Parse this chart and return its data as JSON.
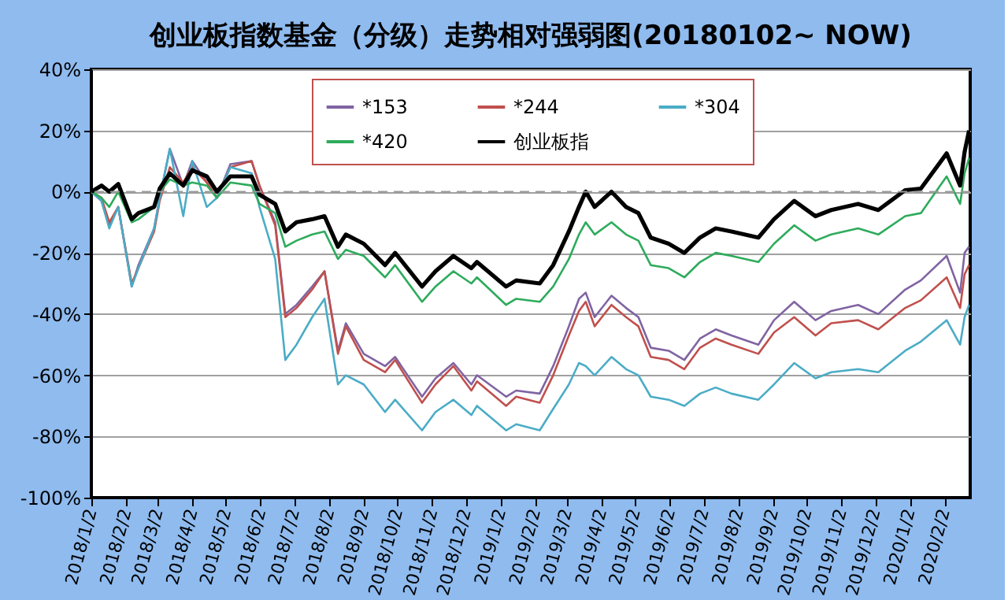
{
  "chart_data": {
    "type": "line",
    "title": "创业板指数基金（分级）走势相对强弱图(20180102~ NOW)",
    "x": [
      "2018-01-02",
      "2018-01-11",
      "2018-01-18",
      "2018-01-26",
      "2018-02-07",
      "2018-02-13",
      "2018-02-27",
      "2018-03-04",
      "2018-03-13",
      "2018-03-25",
      "2018-04-02",
      "2018-04-15",
      "2018-04-24",
      "2018-05-06",
      "2018-05-25",
      "2018-06-01",
      "2018-06-15",
      "2018-06-24",
      "2018-07-04",
      "2018-07-18",
      "2018-07-29",
      "2018-08-10",
      "2018-08-17",
      "2018-09-02",
      "2018-09-21",
      "2018-09-30",
      "2018-10-24",
      "2018-11-05",
      "2018-11-21",
      "2018-12-07",
      "2018-12-12",
      "2019-01-07",
      "2019-01-16",
      "2019-02-06",
      "2019-02-18",
      "2019-03-04",
      "2019-03-13",
      "2019-03-19",
      "2019-03-27",
      "2019-04-11",
      "2019-04-24",
      "2019-05-05",
      "2019-05-16",
      "2019-06-01",
      "2019-06-15",
      "2019-06-29",
      "2019-07-13",
      "2019-07-27",
      "2019-08-20",
      "2019-09-03",
      "2019-09-21",
      "2019-10-10",
      "2019-10-24",
      "2019-11-17",
      "2019-12-05",
      "2019-12-29",
      "2020-01-12",
      "2020-02-04",
      "2020-02-16",
      "2020-02-20",
      "2020-02-24"
    ],
    "series": [
      {
        "name": "*153",
        "color": "#8064a2",
        "values": [
          0,
          -3,
          -11,
          -5,
          -31,
          -24,
          -12,
          -2,
          14,
          2,
          10,
          3,
          -2,
          9,
          10,
          2,
          -10,
          -40,
          -37,
          -31,
          -26,
          -52,
          -43,
          -53,
          -57,
          -54,
          -67,
          -61,
          -56,
          -63,
          -60,
          -67,
          -65,
          -66,
          -57,
          -44,
          -35,
          -33,
          -41,
          -34,
          -38,
          -41,
          -51,
          -52,
          -55,
          -48,
          -45,
          -47,
          -50,
          -42,
          -36,
          -42,
          -39,
          -37,
          -40,
          -32,
          -29,
          -21,
          -33,
          -20,
          -18
        ]
      },
      {
        "name": "*244",
        "color": "#c0504d",
        "values": [
          0,
          -2,
          -10,
          -5,
          -30,
          -25,
          -13,
          -3,
          8,
          3,
          8,
          3,
          -2,
          8,
          10,
          2,
          -11,
          -41,
          -38,
          -32,
          -26,
          -53,
          -44,
          -55,
          -59,
          -55,
          -69,
          -63,
          -57,
          -65,
          -62,
          -70,
          -67,
          -69,
          -60,
          -47,
          -39,
          -36,
          -44,
          -37,
          -41,
          -44,
          -54,
          -55,
          -58,
          -51,
          -48,
          -50,
          -53,
          -46,
          -41,
          -47,
          -43,
          -42,
          -45,
          -38,
          -35.5,
          -28,
          -38,
          -27,
          -24
        ]
      },
      {
        "name": "*304",
        "color": "#4bacc6",
        "values": [
          0,
          -3,
          -12,
          -5,
          -31,
          -25,
          -12,
          -2,
          14,
          -8,
          10,
          -5,
          -2,
          8,
          6,
          -5,
          -22,
          -55,
          -50,
          -41,
          -35,
          -63,
          -60,
          -63,
          -72,
          -68,
          -78,
          -72,
          -68,
          -73,
          -70,
          -78,
          -76,
          -78,
          -71,
          -63,
          -56,
          -57,
          -60,
          -54,
          -58,
          -60,
          -67,
          -68,
          -70,
          -66,
          -64,
          -66,
          -68,
          -63,
          -56,
          -61,
          -59,
          -58,
          -59,
          -52,
          -49,
          -42,
          -50,
          -41,
          -37
        ]
      },
      {
        "name": "*420",
        "color": "#2eab5c",
        "values": [
          0,
          -2,
          -5,
          0,
          -10,
          -9,
          -5,
          0,
          4,
          2,
          3,
          2,
          -2,
          3,
          2,
          -4,
          -7,
          -18,
          -16,
          -14,
          -13,
          -22,
          -19,
          -21,
          -28,
          -24,
          -36,
          -31,
          -26,
          -30,
          -28,
          -37,
          -35,
          -36,
          -31,
          -22,
          -14,
          -10,
          -14,
          -10,
          -14,
          -16,
          -24,
          -25,
          -28,
          -23,
          -20,
          -21,
          -23,
          -17,
          -11,
          -16,
          -14,
          -12,
          -14,
          -8,
          -7,
          5,
          -4,
          6,
          11
        ]
      },
      {
        "name": "创业板指",
        "color": "#000000",
        "values": [
          0,
          2,
          0,
          2.5,
          -9,
          -7,
          -5,
          1,
          6,
          2,
          7,
          5,
          0,
          5,
          5,
          -1,
          -4,
          -13,
          -10,
          -9,
          -8,
          -18,
          -14,
          -17,
          -24,
          -20,
          -31,
          -26,
          -21,
          -25,
          -23,
          -31,
          -29,
          -30,
          -24,
          -13,
          -5,
          0,
          -5,
          0,
          -5,
          -7,
          -15,
          -17,
          -20,
          -15,
          -12,
          -13,
          -15,
          -9,
          -3,
          -8,
          -6,
          -4,
          -6,
          0.5,
          1,
          12.5,
          2,
          13,
          20
        ]
      }
    ],
    "xlim": [
      "2018-01-02",
      "2020-02-25"
    ],
    "xticks": [
      {
        "value": "2018-01-02",
        "label": "2018/1/2"
      },
      {
        "value": "2018-02-02",
        "label": "2018/2/2"
      },
      {
        "value": "2018-03-02",
        "label": "2018/3/2"
      },
      {
        "value": "2018-04-02",
        "label": "2018/4/2"
      },
      {
        "value": "2018-05-02",
        "label": "2018/5/2"
      },
      {
        "value": "2018-06-02",
        "label": "2018/6/2"
      },
      {
        "value": "2018-07-02",
        "label": "2018/7/2"
      },
      {
        "value": "2018-08-02",
        "label": "2018/8/2"
      },
      {
        "value": "2018-09-02",
        "label": "2018/9/2"
      },
      {
        "value": "2018-10-02",
        "label": "2018/10/2"
      },
      {
        "value": "2018-11-02",
        "label": "2018/11/2"
      },
      {
        "value": "2018-12-02",
        "label": "2018/12/2"
      },
      {
        "value": "2019-01-02",
        "label": "2019/1/2"
      },
      {
        "value": "2019-02-02",
        "label": "2019/2/2"
      },
      {
        "value": "2019-03-02",
        "label": "2019/3/2"
      },
      {
        "value": "2019-04-02",
        "label": "2019/4/2"
      },
      {
        "value": "2019-05-02",
        "label": "2019/5/2"
      },
      {
        "value": "2019-06-02",
        "label": "2019/6/2"
      },
      {
        "value": "2019-07-02",
        "label": "2019/7/2"
      },
      {
        "value": "2019-08-02",
        "label": "2019/8/2"
      },
      {
        "value": "2019-09-02",
        "label": "2019/9/2"
      },
      {
        "value": "2019-10-02",
        "label": "2019/10/2"
      },
      {
        "value": "2019-11-02",
        "label": "2019/11/2"
      },
      {
        "value": "2019-12-02",
        "label": "2019/12/2"
      },
      {
        "value": "2020-01-02",
        "label": "2020/1/2"
      },
      {
        "value": "2020-02-02",
        "label": "2020/2/2"
      }
    ],
    "ylim": [
      -100,
      40
    ],
    "yticks": [
      {
        "value": -100,
        "label": "-100%"
      },
      {
        "value": -80,
        "label": "-80%"
      },
      {
        "value": -60,
        "label": "-60%"
      },
      {
        "value": -40,
        "label": "-40%"
      },
      {
        "value": -20,
        "label": "-20%"
      },
      {
        "value": 0,
        "label": "0%"
      },
      {
        "value": 20,
        "label": "20%"
      },
      {
        "value": 40,
        "label": "40%"
      }
    ],
    "ref_lines": [
      {
        "axis": "y",
        "value": 0,
        "color": "#999999",
        "line_style": "dashed"
      }
    ],
    "grid": "y",
    "legend": "top",
    "marker": "none",
    "line_style": "solid"
  }
}
